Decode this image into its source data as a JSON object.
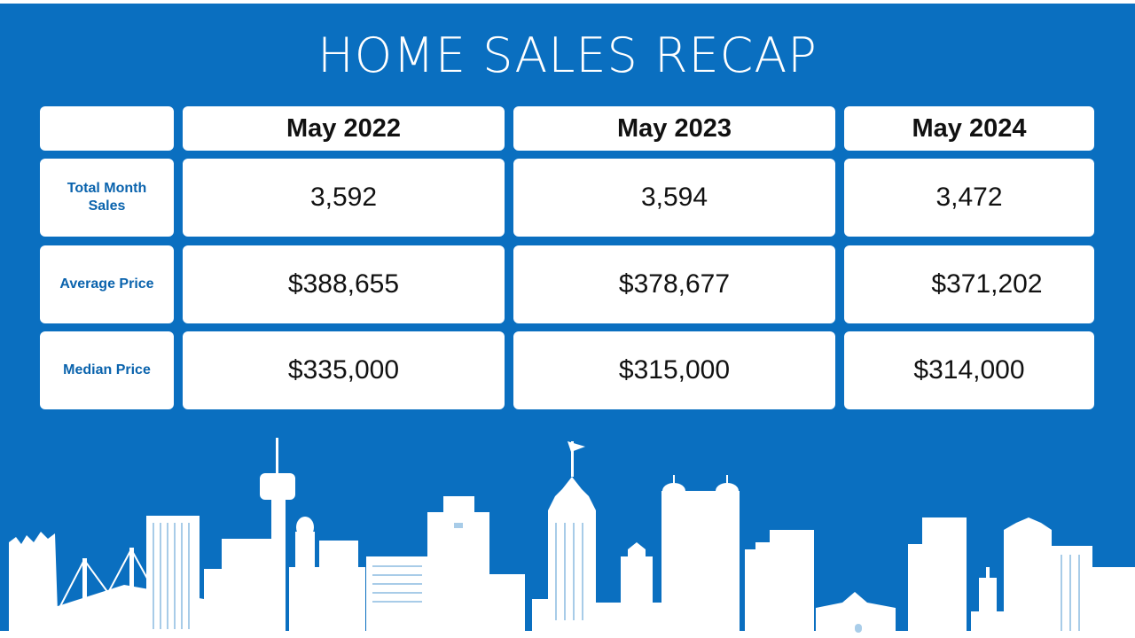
{
  "title": "HOME SALES RECAP",
  "columns": [
    "May 2022",
    "May 2023",
    "May 2024"
  ],
  "rows": [
    {
      "label": "Total Month Sales",
      "values": [
        "3,592",
        "3,594",
        "3,472"
      ]
    },
    {
      "label": "Average Price",
      "values": [
        "$388,655",
        "$378,677",
        "$371,202"
      ]
    },
    {
      "label": "Median Price",
      "values": [
        "$335,000",
        "$315,000",
        "$314,000"
      ]
    }
  ],
  "colors": {
    "background": "#0a6fc0",
    "label_text": "#0a63ad",
    "cell": "#ffffff"
  },
  "skyline": "city-skyline-silhouette"
}
